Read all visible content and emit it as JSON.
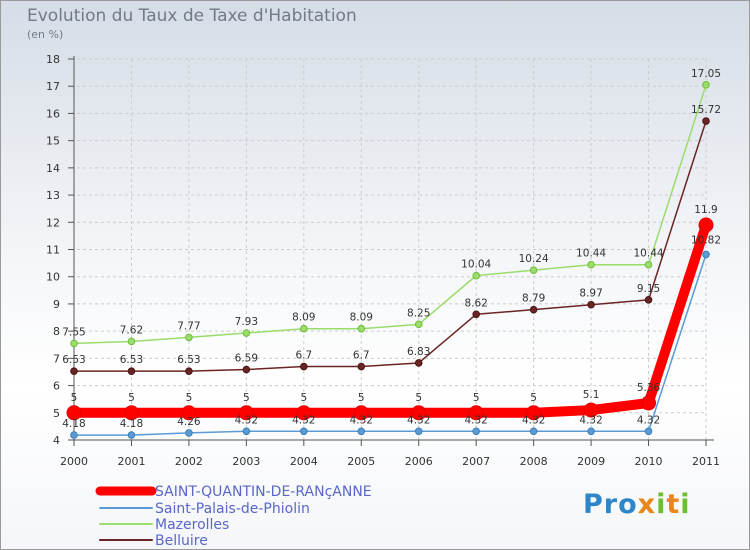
{
  "chart_data": {
    "type": "line",
    "title": "Evolution du Taux de Taxe d'Habitation",
    "unit_label": "(en %)",
    "x": [
      "2000",
      "2001",
      "2002",
      "2003",
      "2004",
      "2005",
      "2006",
      "2007",
      "2008",
      "2009",
      "2010",
      "2011"
    ],
    "ylim": [
      4,
      18
    ],
    "yticks": [
      "4",
      "5",
      "6",
      "7",
      "8",
      "9",
      "10",
      "11",
      "12",
      "13",
      "14",
      "15",
      "16",
      "17",
      "18"
    ],
    "series": [
      {
        "name": "SAINT-QUANTIN-DE-RANçANNE",
        "color": "#ff0000",
        "values": [
          5,
          5,
          5,
          5,
          5,
          5,
          5,
          5,
          5,
          5.1,
          5.36,
          11.9
        ],
        "labels": [
          "5",
          "5",
          "5",
          "5",
          "5",
          "5",
          "5",
          "5",
          "5",
          "5.1",
          "5.36",
          "11.9"
        ]
      },
      {
        "name": "Saint-Palais-de-Phiolin",
        "color": "#5b9bd5",
        "values": [
          4.18,
          4.18,
          4.26,
          4.32,
          4.32,
          4.32,
          4.32,
          4.32,
          4.32,
          4.32,
          4.32,
          10.82
        ],
        "labels": [
          "4.18",
          "4.18",
          "4.26",
          "4.32",
          "4.32",
          "4.32",
          "4.32",
          "4.32",
          "4.32",
          "4.32",
          "4.32",
          "10.82"
        ]
      },
      {
        "name": "Mazerolles",
        "color": "#9bdc6c",
        "values": [
          7.55,
          7.62,
          7.77,
          7.93,
          8.09,
          8.09,
          8.25,
          10.04,
          10.24,
          10.44,
          10.44,
          17.05
        ],
        "labels": [
          "7.55",
          "7.62",
          "7.77",
          "7.93",
          "8.09",
          "8.09",
          "8.25",
          "10.04",
          "10.24",
          "10.44",
          "10.44",
          "17.05"
        ]
      },
      {
        "name": "Belluire",
        "color": "#6b2424",
        "values": [
          6.53,
          6.53,
          6.53,
          6.59,
          6.7,
          6.7,
          6.83,
          8.62,
          8.79,
          8.97,
          9.15,
          15.72
        ],
        "labels": [
          "6.53",
          "6.53",
          "6.53",
          "6.59",
          "6.7",
          "6.7",
          "6.83",
          "8.62",
          "8.79",
          "8.97",
          "9.15",
          "15.72"
        ]
      }
    ],
    "legend_position": "bottom-left"
  },
  "logo": {
    "p1": "Pro",
    "p2": "x",
    "p3": "i",
    "p4": "t",
    "p5": "i"
  }
}
